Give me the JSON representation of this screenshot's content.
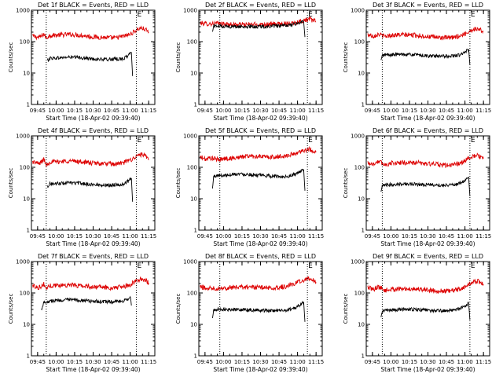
{
  "figure": {
    "colors": {
      "events": "#000000",
      "lld": "#dd0000",
      "axes": "#000000",
      "background": "#ffffff"
    }
  },
  "chart_data": [
    {
      "type": "line",
      "title": "Det 1f BLACK = Events, RED = LLD",
      "xlabel": "Start Time (18-Apr-02 09:39:40)",
      "ylabel": "Counts/sec",
      "xticks": [
        "09:45",
        "10:00",
        "10:15",
        "10:30",
        "10:45",
        "11:00",
        "11:15"
      ],
      "yticks": [
        "1",
        "10",
        "100",
        "1000"
      ],
      "yscale": "log",
      "ylim": [
        1,
        1000
      ],
      "markers": [
        {
          "time": "09:52",
          "label": ""
        },
        {
          "time": "11:05",
          "label": "E"
        }
      ],
      "grid": false,
      "legend": "none",
      "series": [
        {
          "color": "#dd0000",
          "x": [
            "09:41",
            "09:46",
            "09:48",
            "09:50",
            "09:52",
            "09:55",
            "10:00",
            "10:10",
            "10:20",
            "10:30",
            "10:40",
            "10:48",
            "10:55",
            "11:00",
            "11:05",
            "11:08",
            "11:12",
            "11:15"
          ],
          "values": [
            150,
            135,
            150,
            175,
            130,
            160,
            160,
            170,
            160,
            140,
            135,
            130,
            150,
            170,
            230,
            270,
            250,
            200
          ]
        },
        {
          "color": "#000000",
          "x": [
            "09:53",
            "09:55",
            "10:00",
            "10:10",
            "10:20",
            "10:30",
            "10:40",
            "10:50",
            "10:55",
            "10:58",
            "11:00",
            "11:01",
            "11:02"
          ],
          "values": [
            25,
            30,
            30,
            32,
            31,
            28,
            27,
            28,
            29,
            35,
            42,
            45,
            8
          ]
        }
      ]
    },
    {
      "type": "line",
      "title": "Det 2f BLACK = Events, RED = LLD",
      "xlabel": "Start Time (18-Apr-02 09:39:40)",
      "ylabel": "Counts/sec",
      "xticks": [
        "09:45",
        "10:00",
        "10:15",
        "10:30",
        "10:45",
        "11:00",
        "11:15"
      ],
      "yticks": [
        "1",
        "10",
        "100",
        "1000"
      ],
      "yscale": "log",
      "ylim": [
        1,
        1000
      ],
      "markers": [
        {
          "time": "09:57",
          "label": ""
        },
        {
          "time": "11:08",
          "label": "E"
        }
      ],
      "grid": false,
      "legend": "none",
      "series": [
        {
          "color": "#dd0000",
          "x": [
            "09:41",
            "09:46",
            "09:50",
            "09:55",
            "10:00",
            "10:10",
            "10:20",
            "10:30",
            "10:40",
            "10:50",
            "10:58",
            "11:05",
            "11:10",
            "11:15"
          ],
          "values": [
            390,
            370,
            370,
            380,
            360,
            350,
            350,
            355,
            360,
            370,
            400,
            480,
            520,
            430
          ]
        },
        {
          "color": "#000000",
          "x": [
            "09:51",
            "09:52",
            "09:55",
            "10:00",
            "10:10",
            "10:20",
            "10:30",
            "10:40",
            "10:50",
            "10:58",
            "11:03",
            "11:05",
            "11:06"
          ],
          "values": [
            200,
            320,
            310,
            310,
            300,
            300,
            300,
            310,
            320,
            360,
            420,
            430,
            140
          ]
        }
      ]
    },
    {
      "type": "line",
      "title": "Det 3f BLACK = Events, RED = LLD",
      "xlabel": "Start Time (18-Apr-02 09:39:40)",
      "ylabel": "Counts/sec",
      "xticks": [
        "09:45",
        "10:00",
        "10:15",
        "10:30",
        "10:45",
        "11:00",
        "11:15"
      ],
      "yticks": [
        "1",
        "10",
        "100",
        "1000"
      ],
      "yscale": "log",
      "ylim": [
        1,
        1000
      ],
      "markers": [
        {
          "time": "09:53",
          "label": ""
        },
        {
          "time": "11:04",
          "label": "E"
        }
      ],
      "grid": false,
      "legend": "none",
      "series": [
        {
          "color": "#dd0000",
          "x": [
            "09:41",
            "09:46",
            "09:48",
            "09:50",
            "09:55",
            "10:00",
            "10:10",
            "10:20",
            "10:30",
            "10:40",
            "10:48",
            "10:55",
            "11:00",
            "11:05",
            "11:10",
            "11:15"
          ],
          "values": [
            170,
            150,
            165,
            175,
            145,
            160,
            165,
            160,
            145,
            135,
            130,
            150,
            175,
            230,
            260,
            210
          ]
        },
        {
          "color": "#000000",
          "x": [
            "09:52",
            "09:53",
            "09:55",
            "10:00",
            "10:10",
            "10:20",
            "10:30",
            "10:40",
            "10:50",
            "10:55",
            "11:00",
            "11:03",
            "11:04"
          ],
          "values": [
            25,
            35,
            38,
            38,
            40,
            38,
            35,
            34,
            35,
            37,
            45,
            58,
            18
          ]
        }
      ]
    },
    {
      "type": "line",
      "title": "Det 4f BLACK = Events, RED = LLD",
      "xlabel": "Start Time (18-Apr-02 09:39:40)",
      "ylabel": "Counts/sec",
      "xticks": [
        "09:45",
        "10:00",
        "10:15",
        "10:30",
        "10:45",
        "11:00",
        "11:15"
      ],
      "yticks": [
        "1",
        "10",
        "100",
        "1000"
      ],
      "yscale": "log",
      "ylim": [
        1,
        1000
      ],
      "markers": [
        {
          "time": "09:52",
          "label": ""
        },
        {
          "time": "11:05",
          "label": "E"
        }
      ],
      "grid": false,
      "legend": "none",
      "series": [
        {
          "color": "#dd0000",
          "x": [
            "09:41",
            "09:46",
            "09:48",
            "09:50",
            "09:52",
            "09:55",
            "10:00",
            "10:10",
            "10:20",
            "10:30",
            "10:40",
            "10:48",
            "10:55",
            "11:00",
            "11:05",
            "11:08",
            "11:12",
            "11:15"
          ],
          "values": [
            150,
            130,
            150,
            180,
            120,
            150,
            150,
            160,
            150,
            135,
            130,
            125,
            140,
            170,
            220,
            260,
            230,
            170
          ]
        },
        {
          "color": "#000000",
          "x": [
            "09:53",
            "09:55",
            "10:00",
            "10:10",
            "10:20",
            "10:30",
            "10:40",
            "10:50",
            "10:55",
            "10:58",
            "11:00",
            "11:01",
            "11:02"
          ],
          "values": [
            25,
            30,
            30,
            32,
            31,
            28,
            27,
            28,
            29,
            35,
            42,
            45,
            8
          ]
        }
      ]
    },
    {
      "type": "line",
      "title": "Det 5f BLACK = Events, RED = LLD",
      "xlabel": "Start Time (18-Apr-02 09:39:40)",
      "ylabel": "Counts/sec",
      "xticks": [
        "09:45",
        "10:00",
        "10:15",
        "10:30",
        "10:45",
        "11:00",
        "11:15"
      ],
      "yticks": [
        "1",
        "10",
        "100",
        "1000"
      ],
      "yscale": "log",
      "ylim": [
        1,
        1000
      ],
      "markers": [
        {
          "time": "09:57",
          "label": ""
        },
        {
          "time": "11:08",
          "label": "E"
        }
      ],
      "grid": false,
      "legend": "none",
      "series": [
        {
          "color": "#dd0000",
          "x": [
            "09:41",
            "09:46",
            "09:50",
            "09:55",
            "10:00",
            "10:10",
            "10:20",
            "10:30",
            "10:40",
            "10:50",
            "10:58",
            "11:05",
            "11:10",
            "11:15"
          ],
          "values": [
            210,
            180,
            200,
            175,
            185,
            200,
            230,
            220,
            210,
            230,
            270,
            350,
            370,
            300
          ]
        },
        {
          "color": "#000000",
          "x": [
            "09:51",
            "09:52",
            "09:55",
            "10:00",
            "10:10",
            "10:20",
            "10:30",
            "10:40",
            "10:50",
            "10:58",
            "11:03",
            "11:05",
            "11:06"
          ],
          "values": [
            20,
            50,
            55,
            55,
            62,
            60,
            55,
            52,
            50,
            60,
            75,
            85,
            18
          ]
        }
      ]
    },
    {
      "type": "line",
      "title": "Det 6f BLACK = Events, RED = LLD",
      "xlabel": "Start Time (18-Apr-02 09:39:40)",
      "ylabel": "Counts/sec",
      "xticks": [
        "09:45",
        "10:00",
        "10:15",
        "10:30",
        "10:45",
        "11:00",
        "11:15"
      ],
      "yticks": [
        "1",
        "10",
        "100",
        "1000"
      ],
      "yscale": "log",
      "ylim": [
        1,
        1000
      ],
      "markers": [
        {
          "time": "09:53",
          "label": ""
        },
        {
          "time": "11:04",
          "label": "E"
        }
      ],
      "grid": false,
      "legend": "none",
      "series": [
        {
          "color": "#dd0000",
          "x": [
            "09:41",
            "09:46",
            "09:48",
            "09:50",
            "09:55",
            "10:00",
            "10:10",
            "10:20",
            "10:30",
            "10:40",
            "10:48",
            "10:55",
            "11:00",
            "11:05",
            "11:10",
            "11:15"
          ],
          "values": [
            140,
            125,
            145,
            155,
            120,
            135,
            140,
            140,
            130,
            120,
            115,
            130,
            160,
            210,
            240,
            190
          ]
        },
        {
          "color": "#000000",
          "x": [
            "09:52",
            "09:53",
            "09:55",
            "10:00",
            "10:10",
            "10:20",
            "10:30",
            "10:40",
            "10:50",
            "10:55",
            "11:00",
            "11:03",
            "11:04"
          ],
          "values": [
            16,
            25,
            27,
            28,
            30,
            29,
            28,
            27,
            28,
            30,
            38,
            48,
            12
          ]
        }
      ]
    },
    {
      "type": "line",
      "title": "Det 7f BLACK = Events, RED = LLD",
      "xlabel": "Start Time (18-Apr-02 09:39:40)",
      "ylabel": "Counts/sec",
      "xticks": [
        "09:45",
        "10:00",
        "10:15",
        "10:30",
        "10:45",
        "11:00",
        "11:15"
      ],
      "yticks": [
        "1",
        "10",
        "100",
        "1000"
      ],
      "yscale": "log",
      "ylim": [
        1,
        1000
      ],
      "markers": [
        {
          "time": "09:52",
          "label": ""
        },
        {
          "time": "11:05",
          "label": "E"
        }
      ],
      "grid": false,
      "legend": "none",
      "series": [
        {
          "color": "#dd0000",
          "x": [
            "09:41",
            "09:46",
            "09:48",
            "09:50",
            "09:52",
            "09:55",
            "10:00",
            "10:10",
            "10:20",
            "10:30",
            "10:40",
            "10:48",
            "10:55",
            "11:00",
            "11:05",
            "11:08",
            "11:12",
            "11:15"
          ],
          "values": [
            170,
            150,
            165,
            190,
            140,
            170,
            175,
            180,
            170,
            155,
            150,
            145,
            160,
            185,
            240,
            280,
            260,
            210
          ]
        },
        {
          "color": "#000000",
          "x": [
            "09:48",
            "09:50",
            "09:55",
            "10:00",
            "10:10",
            "10:20",
            "10:30",
            "10:40",
            "10:50",
            "10:55",
            "10:58",
            "11:00",
            "11:01"
          ],
          "values": [
            30,
            50,
            55,
            58,
            60,
            58,
            55,
            52,
            53,
            56,
            65,
            75,
            40
          ]
        }
      ]
    },
    {
      "type": "line",
      "title": "Det 8f BLACK = Events, RED = LLD",
      "xlabel": "Start Time (18-Apr-02 09:39:40)",
      "ylabel": "Counts/sec",
      "xticks": [
        "09:45",
        "10:00",
        "10:15",
        "10:30",
        "10:45",
        "11:00",
        "11:15"
      ],
      "yticks": [
        "1",
        "10",
        "100",
        "1000"
      ],
      "yscale": "log",
      "ylim": [
        1,
        1000
      ],
      "markers": [
        {
          "time": "09:57",
          "label": ""
        },
        {
          "time": "11:08",
          "label": "E"
        }
      ],
      "grid": false,
      "legend": "none",
      "series": [
        {
          "color": "#dd0000",
          "x": [
            "09:41",
            "09:46",
            "09:50",
            "09:55",
            "10:00",
            "10:10",
            "10:20",
            "10:30",
            "10:40",
            "10:50",
            "10:58",
            "11:05",
            "11:10",
            "11:15"
          ],
          "values": [
            160,
            140,
            150,
            140,
            145,
            150,
            155,
            150,
            145,
            160,
            200,
            260,
            300,
            220
          ]
        },
        {
          "color": "#000000",
          "x": [
            "09:51",
            "09:52",
            "09:55",
            "10:00",
            "10:10",
            "10:20",
            "10:30",
            "10:40",
            "10:50",
            "10:58",
            "11:03",
            "11:05",
            "11:06"
          ],
          "values": [
            15,
            28,
            30,
            30,
            30,
            29,
            28,
            27,
            28,
            32,
            45,
            52,
            12
          ]
        }
      ]
    },
    {
      "type": "line",
      "title": "Det 9f BLACK = Events, RED = LLD",
      "xlabel": "Start Time (18-Apr-02 09:39:40)",
      "ylabel": "Counts/sec",
      "xticks": [
        "09:45",
        "10:00",
        "10:15",
        "10:30",
        "10:45",
        "11:00",
        "11:15"
      ],
      "yticks": [
        "1",
        "10",
        "100",
        "1000"
      ],
      "yscale": "log",
      "ylim": [
        1,
        1000
      ],
      "markers": [
        {
          "time": "09:53",
          "label": ""
        },
        {
          "time": "11:04",
          "label": "E"
        }
      ],
      "grid": false,
      "legend": "none",
      "series": [
        {
          "color": "#dd0000",
          "x": [
            "09:41",
            "09:46",
            "09:48",
            "09:50",
            "09:55",
            "10:00",
            "10:10",
            "10:20",
            "10:30",
            "10:40",
            "10:48",
            "10:55",
            "11:00",
            "11:05",
            "11:10",
            "11:15"
          ],
          "values": [
            150,
            130,
            145,
            160,
            120,
            130,
            135,
            135,
            125,
            115,
            115,
            130,
            155,
            210,
            240,
            190
          ]
        },
        {
          "color": "#000000",
          "x": [
            "09:52",
            "09:53",
            "09:55",
            "10:00",
            "10:10",
            "10:20",
            "10:30",
            "10:40",
            "10:50",
            "10:55",
            "11:00",
            "11:03",
            "11:04"
          ],
          "values": [
            16,
            26,
            28,
            28,
            30,
            30,
            28,
            27,
            28,
            30,
            38,
            48,
            14
          ]
        }
      ]
    }
  ]
}
